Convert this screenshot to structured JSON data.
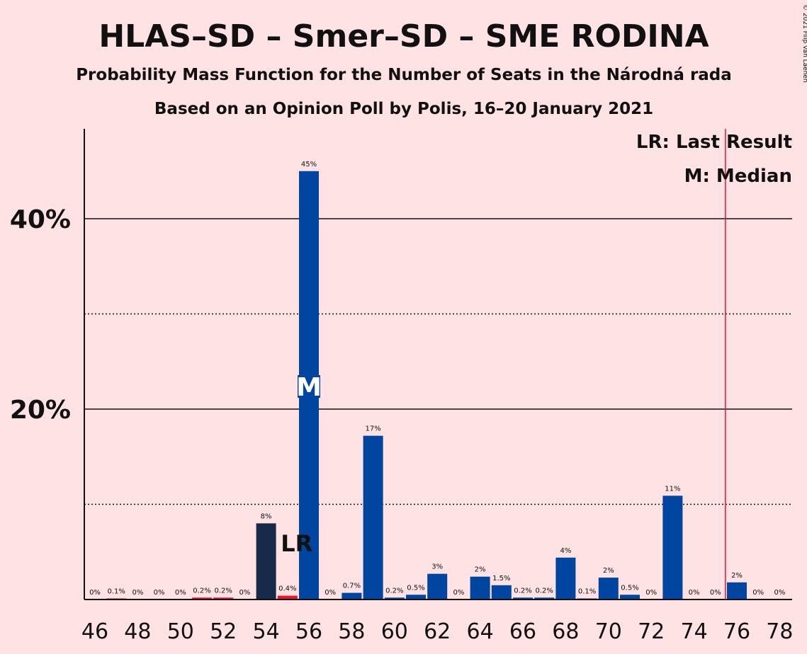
{
  "copyright": "© 2021 Filip van Laenen",
  "chart_data": {
    "type": "bar",
    "title": "HLAS–SD – Smer–SD – SME RODINA",
    "subtitle": "Probability Mass Function for the Number of Seats in the Národná rada",
    "subtitle2": "Based on an Opinion Poll by Polis, 16–20 January 2021",
    "legend": {
      "last_result": "LR: Last Result",
      "median": "M: Median",
      "placement": "top-right"
    },
    "x_range": [
      46,
      78
    ],
    "ylim": [
      0,
      50
    ],
    "y_ticks": [
      {
        "value": 20,
        "label": "20%"
      },
      {
        "value": 40,
        "label": "40%"
      }
    ],
    "y_minor_gridlines": [
      10,
      30
    ],
    "x_ticks": [
      46,
      48,
      50,
      52,
      54,
      56,
      58,
      60,
      62,
      64,
      66,
      68,
      70,
      72,
      74,
      76,
      78
    ],
    "majority_line": 76,
    "last_result": {
      "seat": 55,
      "label": "LR"
    },
    "median": {
      "seat": 56,
      "label": "M"
    },
    "colors": {
      "above_median": "#0046A0",
      "below_median": "#E8152D",
      "last_result_bar": "#172A4A",
      "majority_line": "#E8152D",
      "background": "#FFE2E3"
    },
    "bars": [
      {
        "seat": 46,
        "value": 0,
        "label": "0%"
      },
      {
        "seat": 47,
        "value": 0.1,
        "label": "0.1%"
      },
      {
        "seat": 48,
        "value": 0,
        "label": "0%"
      },
      {
        "seat": 49,
        "value": 0,
        "label": "0%"
      },
      {
        "seat": 50,
        "value": 0,
        "label": "0%"
      },
      {
        "seat": 51,
        "value": 0.2,
        "label": "0.2%"
      },
      {
        "seat": 52,
        "value": 0.2,
        "label": "0.2%"
      },
      {
        "seat": 53,
        "value": 0,
        "label": "0%"
      },
      {
        "seat": 54,
        "value": 8,
        "label": "8%"
      },
      {
        "seat": 55,
        "value": 0.4,
        "label": "0.4%"
      },
      {
        "seat": 56,
        "value": 45,
        "label": "45%"
      },
      {
        "seat": 57,
        "value": 0,
        "label": "0%"
      },
      {
        "seat": 58,
        "value": 0.7,
        "label": "0.7%"
      },
      {
        "seat": 59,
        "value": 17.2,
        "label": "17%"
      },
      {
        "seat": 60,
        "value": 0.2,
        "label": "0.2%"
      },
      {
        "seat": 61,
        "value": 0.5,
        "label": "0.5%"
      },
      {
        "seat": 62,
        "value": 2.7,
        "label": "3%"
      },
      {
        "seat": 63,
        "value": 0,
        "label": "0%"
      },
      {
        "seat": 64,
        "value": 2.4,
        "label": "2%"
      },
      {
        "seat": 65,
        "value": 1.5,
        "label": "1.5%"
      },
      {
        "seat": 66,
        "value": 0.2,
        "label": "0.2%"
      },
      {
        "seat": 67,
        "value": 0.2,
        "label": "0.2%"
      },
      {
        "seat": 68,
        "value": 4.4,
        "label": "4%"
      },
      {
        "seat": 69,
        "value": 0.1,
        "label": "0.1%"
      },
      {
        "seat": 70,
        "value": 2.3,
        "label": "2%"
      },
      {
        "seat": 71,
        "value": 0.5,
        "label": "0.5%"
      },
      {
        "seat": 72,
        "value": 0,
        "label": "0%"
      },
      {
        "seat": 73,
        "value": 10.9,
        "label": "11%"
      },
      {
        "seat": 74,
        "value": 0,
        "label": "0%"
      },
      {
        "seat": 75,
        "value": 0,
        "label": "0%"
      },
      {
        "seat": 76,
        "value": 1.8,
        "label": "2%"
      },
      {
        "seat": 77,
        "value": 0,
        "label": "0%"
      },
      {
        "seat": 78,
        "value": 0,
        "label": "0%"
      }
    ]
  }
}
